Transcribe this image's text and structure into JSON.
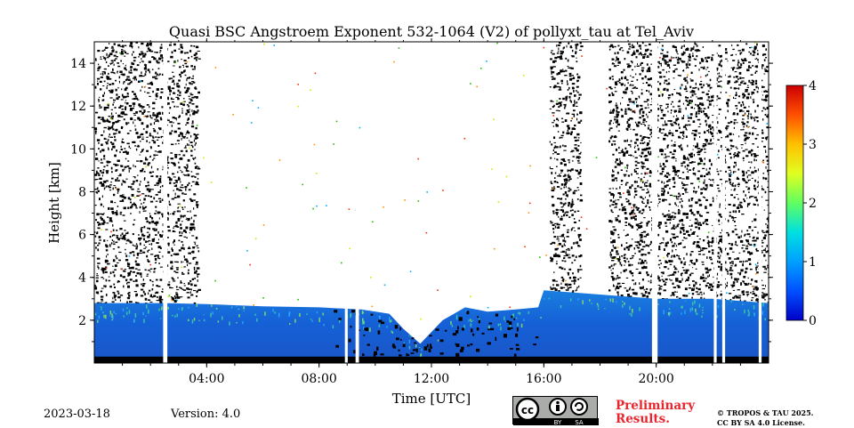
{
  "chart_data": {
    "type": "heatmap",
    "title": "Quasi BSC Angstroem Exponent 532-1064 (V2) of pollyxt_tau at Tel_Aviv",
    "xlabel": "Time [UTC]",
    "ylabel": "Height [km]",
    "xlim": [
      0,
      24
    ],
    "ylim": [
      0,
      15
    ],
    "x_ticks": [
      {
        "value": 4,
        "label": "04:00"
      },
      {
        "value": 8,
        "label": "08:00"
      },
      {
        "value": 12,
        "label": "12:00"
      },
      {
        "value": 16,
        "label": "16:00"
      },
      {
        "value": 20,
        "label": "20:00"
      }
    ],
    "y_ticks": [
      {
        "value": 2,
        "label": "2"
      },
      {
        "value": 4,
        "label": "4"
      },
      {
        "value": 6,
        "label": "6"
      },
      {
        "value": 8,
        "label": "8"
      },
      {
        "value": 10,
        "label": "10"
      },
      {
        "value": 12,
        "label": "12"
      },
      {
        "value": 14,
        "label": "14"
      }
    ],
    "colorbar": {
      "range": [
        0,
        4
      ],
      "ticks": [
        "0",
        "1",
        "2",
        "3",
        "4"
      ],
      "colormap": "jet"
    },
    "layer_top_km": [
      {
        "t": 0.0,
        "top": 2.8
      },
      {
        "t": 2.5,
        "top": 2.8
      },
      {
        "t": 4.0,
        "top": 2.75
      },
      {
        "t": 6.0,
        "top": 2.65
      },
      {
        "t": 8.0,
        "top": 2.6
      },
      {
        "t": 9.5,
        "top": 2.5
      },
      {
        "t": 10.5,
        "top": 2.3
      },
      {
        "t": 11.0,
        "top": 1.6
      },
      {
        "t": 11.6,
        "top": 0.9
      },
      {
        "t": 12.4,
        "top": 2.0
      },
      {
        "t": 13.2,
        "top": 2.6
      },
      {
        "t": 14.0,
        "top": 2.4
      },
      {
        "t": 15.0,
        "top": 2.5
      },
      {
        "t": 15.8,
        "top": 2.6
      },
      {
        "t": 16.0,
        "top": 3.4
      },
      {
        "t": 18.0,
        "top": 3.2
      },
      {
        "t": 20.0,
        "top": 3.0
      },
      {
        "t": 22.0,
        "top": 3.0
      },
      {
        "t": 24.0,
        "top": 2.8
      }
    ],
    "data_gaps_utc": [
      {
        "start": 2.45,
        "end": 2.6
      },
      {
        "start": 8.92,
        "end": 9.02
      },
      {
        "start": 9.3,
        "end": 9.42
      },
      {
        "start": 19.85,
        "end": 20.05
      },
      {
        "start": 22.05,
        "end": 22.15
      },
      {
        "start": 22.35,
        "end": 22.45
      },
      {
        "start": 23.65,
        "end": 23.75
      }
    ],
    "noise_regions_utc": [
      {
        "start": 0.0,
        "end": 3.7,
        "max_km": 15
      },
      {
        "start": 16.2,
        "end": 17.3,
        "max_km": 15
      },
      {
        "start": 18.3,
        "end": 24.0,
        "max_km": 15
      }
    ],
    "surface_layer_top_km": 0.3
  },
  "footer": {
    "date": "2023-03-18",
    "version": "Version: 4.0",
    "license_badge_text": [
      "BY",
      "SA"
    ],
    "preliminary": [
      "Preliminary",
      "Results."
    ],
    "copyright": [
      "© TROPOS & TAU 2025.",
      "CC BY SA 4.0 License."
    ]
  }
}
